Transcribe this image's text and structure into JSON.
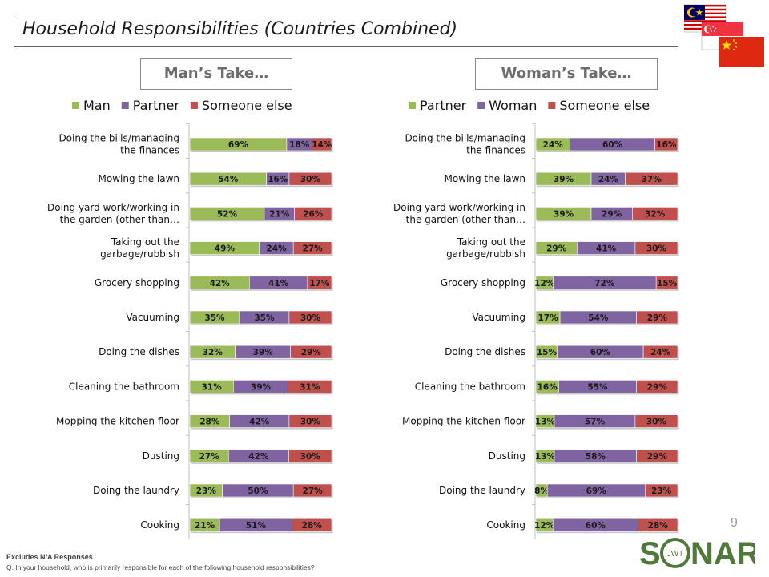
{
  "title": "Household Responsibilities (Countries Combined)",
  "page_number": "9",
  "footnote": {
    "line1": "Excludes N/A Responses",
    "line2": "Q. In your household, who is primarily responsible for each of the following household responsibilities?"
  },
  "logo": {
    "text_left": "S",
    "text_right": "NAR",
    "inner": "JWT"
  },
  "flags": [
    "malaysia-flag",
    "singapore-flag",
    "china-flag"
  ],
  "colors": {
    "green": "#9bbb59",
    "purple": "#8064a2",
    "red": "#c0504d"
  },
  "chart_data": [
    {
      "type": "bar",
      "stacked": true,
      "orientation": "horizontal",
      "panel_title": "Man’s Take…",
      "categories": [
        "Doing the bills/managing the finances",
        "Mowing the lawn",
        "Doing yard work/working in the garden (other than…",
        "Taking out the garbage/rubbish",
        "Grocery shopping",
        "Vacuuming",
        "Doing the dishes",
        "Cleaning the bathroom",
        "Mopping the kitchen floor",
        "Dusting",
        "Doing the laundry",
        "Cooking"
      ],
      "label_lines": [
        [
          "Doing the bills/managing",
          "the finances"
        ],
        [
          "Mowing the lawn"
        ],
        [
          "Doing yard work/working in",
          "the garden (other than…"
        ],
        [
          "Taking out the",
          "garbage/rubbish"
        ],
        [
          "Grocery shopping"
        ],
        [
          "Vacuuming"
        ],
        [
          "Doing the dishes"
        ],
        [
          "Cleaning the bathroom"
        ],
        [
          "Mopping the kitchen floor"
        ],
        [
          "Dusting"
        ],
        [
          "Doing the laundry"
        ],
        [
          "Cooking"
        ]
      ],
      "series": [
        {
          "name": "Man",
          "color": "#9bbb59",
          "values": [
            69,
            54,
            52,
            49,
            42,
            35,
            32,
            31,
            28,
            27,
            23,
            21
          ]
        },
        {
          "name": "Partner",
          "color": "#8064a2",
          "values": [
            18,
            16,
            21,
            24,
            41,
            35,
            39,
            39,
            42,
            42,
            50,
            51
          ]
        },
        {
          "name": "Someone else",
          "color": "#c0504d",
          "values": [
            14,
            30,
            26,
            27,
            17,
            30,
            29,
            31,
            30,
            30,
            27,
            28
          ]
        }
      ],
      "legend_position": "top"
    },
    {
      "type": "bar",
      "stacked": true,
      "orientation": "horizontal",
      "panel_title": "Woman’s Take…",
      "categories": [
        "Doing the bills/managing the finances",
        "Mowing the lawn",
        "Doing yard work/working in the garden (other than…",
        "Taking out the garbage/rubbish",
        "Grocery shopping",
        "Vacuuming",
        "Doing the dishes",
        "Cleaning the bathroom",
        "Mopping the kitchen floor",
        "Dusting",
        "Doing the laundry",
        "Cooking"
      ],
      "label_lines": [
        [
          "Doing the bills/managing",
          "the finances"
        ],
        [
          "Mowing the lawn"
        ],
        [
          "Doing yard work/working in",
          "the garden (other than…"
        ],
        [
          "Taking out the",
          "garbage/rubbish"
        ],
        [
          "Grocery shopping"
        ],
        [
          "Vacuuming"
        ],
        [
          "Doing the dishes"
        ],
        [
          "Cleaning the bathroom"
        ],
        [
          "Mopping the kitchen floor"
        ],
        [
          "Dusting"
        ],
        [
          "Doing the laundry"
        ],
        [
          "Cooking"
        ]
      ],
      "series": [
        {
          "name": "Partner",
          "color": "#9bbb59",
          "values": [
            24,
            39,
            39,
            29,
            12,
            17,
            15,
            16,
            13,
            13,
            8,
            12
          ]
        },
        {
          "name": "Woman",
          "color": "#8064a2",
          "values": [
            60,
            24,
            29,
            41,
            72,
            54,
            60,
            55,
            57,
            58,
            69,
            60
          ]
        },
        {
          "name": "Someone else",
          "color": "#c0504d",
          "values": [
            16,
            37,
            32,
            30,
            15,
            29,
            24,
            29,
            30,
            29,
            23,
            28
          ]
        }
      ],
      "legend_position": "top"
    }
  ]
}
